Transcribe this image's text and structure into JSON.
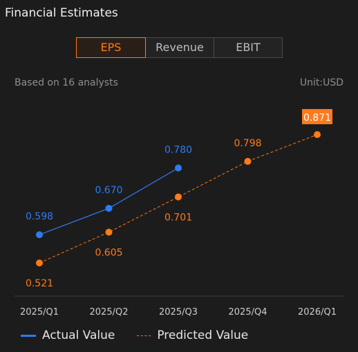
{
  "header": {
    "title": "Financial Estimates"
  },
  "tabs": [
    {
      "label": "EPS",
      "active": true
    },
    {
      "label": "Revenue",
      "active": false
    },
    {
      "label": "EBIT",
      "active": false
    }
  ],
  "meta": {
    "analysts": "Based on 16 analysts",
    "unit": "Unit:USD"
  },
  "colors": {
    "actual": "#2f7bf1",
    "predicted": "#ff7a1a",
    "accent": "#ff7a1a"
  },
  "chart_data": {
    "type": "line",
    "categories": [
      "2025/Q1",
      "2025/Q2",
      "2025/Q3",
      "2025/Q4",
      "2026/Q1"
    ],
    "series": [
      {
        "name": "Actual Value",
        "values": [
          0.598,
          0.67,
          0.78,
          null,
          null
        ],
        "labels": [
          "0.598",
          "0.670",
          "0.780",
          "",
          ""
        ],
        "style": "solid"
      },
      {
        "name": "Predicted Value",
        "values": [
          0.521,
          0.605,
          0.701,
          0.798,
          0.871
        ],
        "labels": [
          "0.521",
          "0.605",
          "0.701",
          "0.798",
          "0.871"
        ],
        "style": "dashed"
      }
    ],
    "highlight_last_predicted": true
  }
}
